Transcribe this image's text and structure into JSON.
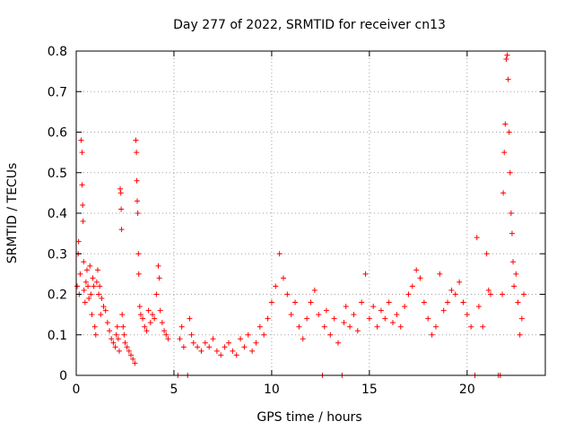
{
  "chart_data": {
    "type": "scatter",
    "title": "Day 277 of 2022, SRMTID for receiver cn13",
    "xlabel": "GPS time / hours",
    "ylabel": "SRMTID / TECUs",
    "xlim": [
      0,
      24
    ],
    "ylim": [
      0,
      0.8
    ],
    "xticks": [
      0,
      5,
      10,
      15,
      20
    ],
    "xtick_labels": [
      "0",
      "5",
      "10",
      "15",
      "20"
    ],
    "yticks": [
      0,
      0.1,
      0.2,
      0.3,
      0.4,
      0.5,
      0.6,
      0.7,
      0.8
    ],
    "ytick_labels": [
      "0",
      "0.1",
      "0.2",
      "0.3",
      "0.4",
      "0.5",
      "0.6",
      "0.7",
      "0.8"
    ],
    "grid": true,
    "marker": "plus",
    "color": "#ff0000",
    "series": [
      {
        "name": "SRMTID",
        "points": [
          [
            0.05,
            0.22
          ],
          [
            0.1,
            0.3
          ],
          [
            0.12,
            0.33
          ],
          [
            0.15,
            0.2
          ],
          [
            0.2,
            0.25
          ],
          [
            0.25,
            0.58
          ],
          [
            0.3,
            0.55
          ],
          [
            0.3,
            0.47
          ],
          [
            0.33,
            0.42
          ],
          [
            0.35,
            0.38
          ],
          [
            0.38,
            0.28
          ],
          [
            0.4,
            0.21
          ],
          [
            0.45,
            0.18
          ],
          [
            0.5,
            0.23
          ],
          [
            0.55,
            0.26
          ],
          [
            0.6,
            0.22
          ],
          [
            0.65,
            0.19
          ],
          [
            0.7,
            0.27
          ],
          [
            0.75,
            0.2
          ],
          [
            0.8,
            0.15
          ],
          [
            0.85,
            0.24
          ],
          [
            0.9,
            0.22
          ],
          [
            0.95,
            0.12
          ],
          [
            1.0,
            0.1
          ],
          [
            1.05,
            0.23
          ],
          [
            1.1,
            0.26
          ],
          [
            1.15,
            0.2
          ],
          [
            1.2,
            0.22
          ],
          [
            1.25,
            0.15
          ],
          [
            1.3,
            0.19
          ],
          [
            1.4,
            0.17
          ],
          [
            1.5,
            0.16
          ],
          [
            1.6,
            0.13
          ],
          [
            1.7,
            0.11
          ],
          [
            1.8,
            0.09
          ],
          [
            1.9,
            0.08
          ],
          [
            2.0,
            0.07
          ],
          [
            2.05,
            0.1
          ],
          [
            2.1,
            0.12
          ],
          [
            2.15,
            0.09
          ],
          [
            2.2,
            0.06
          ],
          [
            2.25,
            0.46
          ],
          [
            2.28,
            0.45
          ],
          [
            2.3,
            0.41
          ],
          [
            2.32,
            0.36
          ],
          [
            2.35,
            0.15
          ],
          [
            2.4,
            0.12
          ],
          [
            2.45,
            0.1
          ],
          [
            2.5,
            0.08
          ],
          [
            2.6,
            0.07
          ],
          [
            2.7,
            0.06
          ],
          [
            2.8,
            0.05
          ],
          [
            2.9,
            0.04
          ],
          [
            3.0,
            0.03
          ],
          [
            3.05,
            0.58
          ],
          [
            3.08,
            0.55
          ],
          [
            3.1,
            0.48
          ],
          [
            3.12,
            0.43
          ],
          [
            3.15,
            0.4
          ],
          [
            3.18,
            0.3
          ],
          [
            3.2,
            0.25
          ],
          [
            3.25,
            0.17
          ],
          [
            3.3,
            0.15
          ],
          [
            3.4,
            0.14
          ],
          [
            3.5,
            0.12
          ],
          [
            3.6,
            0.11
          ],
          [
            3.7,
            0.16
          ],
          [
            3.8,
            0.13
          ],
          [
            3.9,
            0.15
          ],
          [
            4.0,
            0.14
          ],
          [
            4.1,
            0.2
          ],
          [
            4.2,
            0.27
          ],
          [
            4.25,
            0.24
          ],
          [
            4.3,
            0.16
          ],
          [
            4.4,
            0.13
          ],
          [
            4.5,
            0.11
          ],
          [
            4.6,
            0.1
          ],
          [
            4.7,
            0.09
          ],
          [
            5.2,
            0.0
          ],
          [
            5.3,
            0.09
          ],
          [
            5.4,
            0.12
          ],
          [
            5.5,
            0.07
          ],
          [
            5.7,
            0.0
          ],
          [
            5.8,
            0.14
          ],
          [
            5.9,
            0.1
          ],
          [
            6.0,
            0.08
          ],
          [
            6.2,
            0.07
          ],
          [
            6.4,
            0.06
          ],
          [
            6.6,
            0.08
          ],
          [
            6.8,
            0.07
          ],
          [
            7.0,
            0.09
          ],
          [
            7.2,
            0.06
          ],
          [
            7.4,
            0.05
          ],
          [
            7.6,
            0.07
          ],
          [
            7.8,
            0.08
          ],
          [
            8.0,
            0.06
          ],
          [
            8.2,
            0.05
          ],
          [
            8.4,
            0.09
          ],
          [
            8.6,
            0.07
          ],
          [
            8.8,
            0.1
          ],
          [
            9.0,
            0.06
          ],
          [
            9.2,
            0.08
          ],
          [
            9.4,
            0.12
          ],
          [
            9.6,
            0.1
          ],
          [
            9.8,
            0.14
          ],
          [
            10.0,
            0.18
          ],
          [
            10.2,
            0.22
          ],
          [
            10.4,
            0.3
          ],
          [
            10.6,
            0.24
          ],
          [
            10.8,
            0.2
          ],
          [
            11.0,
            0.15
          ],
          [
            11.2,
            0.18
          ],
          [
            11.4,
            0.12
          ],
          [
            11.6,
            0.09
          ],
          [
            11.8,
            0.14
          ],
          [
            12.0,
            0.18
          ],
          [
            12.2,
            0.21
          ],
          [
            12.4,
            0.15
          ],
          [
            12.6,
            0.0
          ],
          [
            12.7,
            0.12
          ],
          [
            12.8,
            0.16
          ],
          [
            13.0,
            0.1
          ],
          [
            13.2,
            0.14
          ],
          [
            13.4,
            0.08
          ],
          [
            13.6,
            0.0
          ],
          [
            13.7,
            0.13
          ],
          [
            13.8,
            0.17
          ],
          [
            14.0,
            0.12
          ],
          [
            14.2,
            0.15
          ],
          [
            14.4,
            0.11
          ],
          [
            14.6,
            0.18
          ],
          [
            14.8,
            0.25
          ],
          [
            15.0,
            0.14
          ],
          [
            15.2,
            0.17
          ],
          [
            15.4,
            0.12
          ],
          [
            15.6,
            0.16
          ],
          [
            15.8,
            0.14
          ],
          [
            16.0,
            0.18
          ],
          [
            16.2,
            0.13
          ],
          [
            16.4,
            0.15
          ],
          [
            16.6,
            0.12
          ],
          [
            16.8,
            0.17
          ],
          [
            17.0,
            0.2
          ],
          [
            17.2,
            0.22
          ],
          [
            17.4,
            0.26
          ],
          [
            17.6,
            0.24
          ],
          [
            17.8,
            0.18
          ],
          [
            18.0,
            0.14
          ],
          [
            18.2,
            0.1
          ],
          [
            18.4,
            0.12
          ],
          [
            18.6,
            0.25
          ],
          [
            18.8,
            0.16
          ],
          [
            19.0,
            0.18
          ],
          [
            19.2,
            0.21
          ],
          [
            19.4,
            0.2
          ],
          [
            19.6,
            0.23
          ],
          [
            19.8,
            0.18
          ],
          [
            20.0,
            0.15
          ],
          [
            20.2,
            0.12
          ],
          [
            20.4,
            0.0
          ],
          [
            20.5,
            0.34
          ],
          [
            20.6,
            0.17
          ],
          [
            20.8,
            0.12
          ],
          [
            21.0,
            0.3
          ],
          [
            21.1,
            0.21
          ],
          [
            21.2,
            0.2
          ],
          [
            21.6,
            0.0
          ],
          [
            21.7,
            0.0
          ],
          [
            21.8,
            0.2
          ],
          [
            21.85,
            0.45
          ],
          [
            21.9,
            0.55
          ],
          [
            21.95,
            0.62
          ],
          [
            22.0,
            0.78
          ],
          [
            22.05,
            0.79
          ],
          [
            22.1,
            0.73
          ],
          [
            22.15,
            0.6
          ],
          [
            22.2,
            0.5
          ],
          [
            22.25,
            0.4
          ],
          [
            22.3,
            0.35
          ],
          [
            22.35,
            0.28
          ],
          [
            22.4,
            0.22
          ],
          [
            22.5,
            0.25
          ],
          [
            22.6,
            0.18
          ],
          [
            22.7,
            0.1
          ],
          [
            22.8,
            0.14
          ],
          [
            22.9,
            0.2
          ]
        ]
      }
    ]
  }
}
